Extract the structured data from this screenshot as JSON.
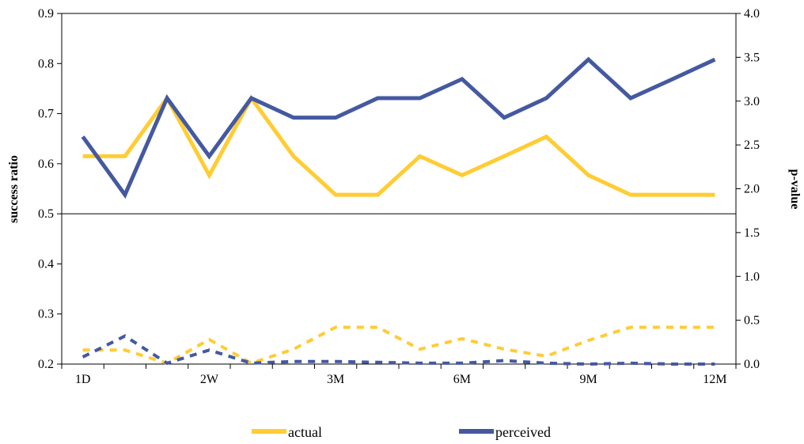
{
  "chart_data": {
    "type": "line",
    "x": [
      "1D",
      "",
      "",
      "2W",
      "",
      "",
      "3M",
      "",
      "",
      "6M",
      "",
      "",
      "9M",
      "",
      "",
      "12M"
    ],
    "x_tick_labels": [
      "1D",
      "2W",
      "3M",
      "6M",
      "9M",
      "12M"
    ],
    "ylabel_left": "success ratio",
    "ylabel_right": "p-value",
    "ylim_left": [
      0.2,
      0.9
    ],
    "ylim_right": [
      0.0,
      4.0
    ],
    "left_ticks": [
      "0.2",
      "0.3",
      "0.4",
      "0.5",
      "0.6",
      "0.7",
      "0.8",
      "0.9"
    ],
    "right_ticks": [
      "0.0",
      "0.5",
      "1.0",
      "1.5",
      "2.0",
      "2.5",
      "3.0",
      "3.5",
      "4.0"
    ],
    "divider_at": 0.5,
    "series": [
      {
        "name": "actual",
        "axis": "left",
        "style": "solid",
        "color": "#FFCC33",
        "values": [
          0.615,
          0.615,
          0.731,
          0.577,
          0.731,
          0.615,
          0.538,
          0.538,
          0.615,
          0.577,
          0.615,
          0.654,
          0.577,
          0.538,
          0.538,
          0.538
        ]
      },
      {
        "name": "perceived",
        "axis": "left",
        "style": "solid",
        "color": "#4459A0",
        "values": [
          0.654,
          0.538,
          0.731,
          0.615,
          0.731,
          0.692,
          0.692,
          0.731,
          0.731,
          0.769,
          0.692,
          0.731,
          0.808,
          0.731,
          0.769,
          0.808
        ]
      },
      {
        "name": "",
        "axis": "right",
        "style": "dashed",
        "color": "#FFCC33",
        "values": [
          0.16,
          0.16,
          0.01,
          0.28,
          0.01,
          0.17,
          0.42,
          0.42,
          0.17,
          0.29,
          0.17,
          0.09,
          0.27,
          0.42,
          0.42,
          0.42
        ]
      },
      {
        "name": "",
        "axis": "right",
        "style": "dashed",
        "color": "#4459A0",
        "values": [
          0.08,
          0.32,
          0.01,
          0.16,
          0.01,
          0.03,
          0.03,
          0.02,
          0.01,
          0.01,
          0.04,
          0.01,
          0.0,
          0.01,
          0.0,
          0.0
        ]
      }
    ],
    "legend": {
      "placement": "bottom",
      "entries": [
        {
          "label": "actual",
          "color": "#FFCC33"
        },
        {
          "label": "perceived",
          "color": "#4459A0"
        }
      ]
    },
    "grid": false
  }
}
